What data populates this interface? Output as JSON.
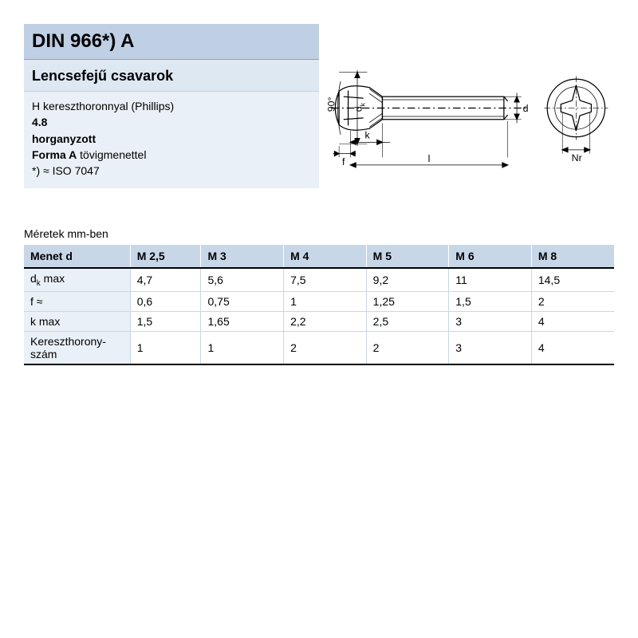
{
  "colors": {
    "band_title_bg": "#bfd0e4",
    "band_subtitle_bg": "#dee8f2",
    "band_desc_bg": "#eaf0f7",
    "thead_bg": "#c8d7e8",
    "rowhead_bg": "#eaf0f7",
    "cell_border": "#c8d7e8",
    "rule": "#000000",
    "drawing_stroke": "#000000"
  },
  "header": {
    "title": "DIN 966*) A",
    "subtitle": "Lencsefejű csavarok",
    "desc_line1": "H kereszthoronnyal (Phillips)",
    "desc_line2_bold": "4.8",
    "desc_line3_bold": "horganyzott",
    "desc_line4_bold": "Forma A",
    "desc_line4_rest": " tövigmenettel",
    "desc_line5": "*) ≈ ISO 7047"
  },
  "drawing": {
    "type": "technical-diagram",
    "labels": {
      "angle": "90°",
      "dk": "d",
      "dk_sub": "k",
      "k": "k",
      "f": "f",
      "l": "l",
      "d": "d",
      "nr": "Nr"
    },
    "stroke_color": "#000000",
    "stroke_width": 1.3
  },
  "table": {
    "units_caption": "Méretek mm-ben",
    "columns": [
      "Menet d",
      "M 2,5",
      "M 3",
      "M 4",
      "M 5",
      "M 6",
      "M 8"
    ],
    "col_widths_pct": [
      18,
      12,
      14,
      14,
      14,
      14,
      14
    ],
    "rows": [
      {
        "label_html": "d<sub>k</sub> max",
        "cells": [
          "4,7",
          "5,6",
          "7,5",
          "9,2",
          "11",
          "14,5"
        ]
      },
      {
        "label_html": "f ≈",
        "cells": [
          "0,6",
          "0,75",
          "1",
          "1,25",
          "1,5",
          "2"
        ]
      },
      {
        "label_html": "k max",
        "cells": [
          "1,5",
          "1,65",
          "2,2",
          "2,5",
          "3",
          "4"
        ]
      },
      {
        "label_html": "Kereszthorony-<br>szám",
        "cells": [
          "1",
          "1",
          "2",
          "2",
          "3",
          "4"
        ]
      }
    ]
  }
}
